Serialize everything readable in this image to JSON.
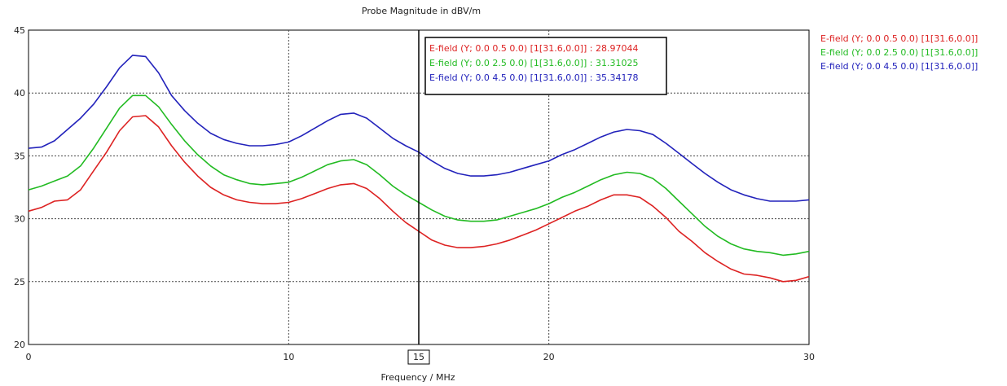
{
  "chart_data": {
    "type": "line",
    "title": "Probe Magnitude in dBV/m",
    "xlabel": "Frequency / MHz",
    "ylabel": "",
    "xlim": [
      0,
      30
    ],
    "ylim": [
      20,
      45
    ],
    "xticks": [
      "0",
      "10",
      "15",
      "20",
      "30"
    ],
    "yticks": [
      "20",
      "25",
      "30",
      "35",
      "40",
      "45"
    ],
    "grid": true,
    "legend_position": "right",
    "cursor": {
      "x": 15,
      "label": "15"
    },
    "series": [
      {
        "name": "E-field (Y; 0.0 0.5 0.0) [1[31.6,0.0]]",
        "color": "#dd2222",
        "cursor_value": "28.97044",
        "x": [
          0,
          0.5,
          1,
          1.5,
          2,
          2.5,
          3,
          3.5,
          4,
          4.5,
          5,
          5.5,
          6,
          6.5,
          7,
          7.5,
          8,
          8.5,
          9,
          9.5,
          10,
          10.5,
          11,
          11.5,
          12,
          12.5,
          13,
          13.5,
          14,
          14.5,
          15,
          15.5,
          16,
          16.5,
          17,
          17.5,
          18,
          18.5,
          19,
          19.5,
          20,
          20.5,
          21,
          21.5,
          22,
          22.5,
          23,
          23.5,
          24,
          24.5,
          25,
          25.5,
          26,
          26.5,
          27,
          27.5,
          28,
          28.5,
          29,
          29.5,
          30
        ],
        "y": [
          30.6,
          30.9,
          31.4,
          31.5,
          32.3,
          33.8,
          35.3,
          37.0,
          38.1,
          38.2,
          37.3,
          35.8,
          34.5,
          33.4,
          32.5,
          31.9,
          31.5,
          31.3,
          31.2,
          31.2,
          31.3,
          31.6,
          32.0,
          32.4,
          32.7,
          32.8,
          32.4,
          31.6,
          30.6,
          29.7,
          29.0,
          28.3,
          27.9,
          27.7,
          27.7,
          27.8,
          28.0,
          28.3,
          28.7,
          29.1,
          29.6,
          30.1,
          30.6,
          31.0,
          31.5,
          31.9,
          31.9,
          31.7,
          31.0,
          30.1,
          29.0,
          28.2,
          27.3,
          26.6,
          26.0,
          25.6,
          25.5,
          25.3,
          25.0,
          25.1,
          25.4
        ]
      },
      {
        "name": "E-field (Y; 0.0 2.5 0.0) [1[31.6,0.0]]",
        "color": "#22bb22",
        "cursor_value": "31.31025",
        "x": [
          0,
          0.5,
          1,
          1.5,
          2,
          2.5,
          3,
          3.5,
          4,
          4.5,
          5,
          5.5,
          6,
          6.5,
          7,
          7.5,
          8,
          8.5,
          9,
          9.5,
          10,
          10.5,
          11,
          11.5,
          12,
          12.5,
          13,
          13.5,
          14,
          14.5,
          15,
          15.5,
          16,
          16.5,
          17,
          17.5,
          18,
          18.5,
          19,
          19.5,
          20,
          20.5,
          21,
          21.5,
          22,
          22.5,
          23,
          23.5,
          24,
          24.5,
          25,
          25.5,
          26,
          26.5,
          27,
          27.5,
          28,
          28.5,
          29,
          29.5,
          30
        ],
        "y": [
          32.3,
          32.6,
          33.0,
          33.4,
          34.2,
          35.6,
          37.2,
          38.8,
          39.8,
          39.8,
          38.9,
          37.5,
          36.2,
          35.1,
          34.2,
          33.5,
          33.1,
          32.8,
          32.7,
          32.8,
          32.9,
          33.3,
          33.8,
          34.3,
          34.6,
          34.7,
          34.3,
          33.5,
          32.6,
          31.9,
          31.3,
          30.7,
          30.2,
          29.9,
          29.8,
          29.8,
          29.9,
          30.2,
          30.5,
          30.8,
          31.2,
          31.7,
          32.1,
          32.6,
          33.1,
          33.5,
          33.7,
          33.6,
          33.2,
          32.4,
          31.4,
          30.4,
          29.4,
          28.6,
          28.0,
          27.6,
          27.4,
          27.3,
          27.1,
          27.2,
          27.4
        ]
      },
      {
        "name": "E-field (Y; 0.0 4.5 0.0) [1[31.6,0.0]]",
        "color": "#2222bb",
        "cursor_value": "35.34178",
        "x": [
          0,
          0.5,
          1,
          1.5,
          2,
          2.5,
          3,
          3.5,
          4,
          4.5,
          5,
          5.5,
          6,
          6.5,
          7,
          7.5,
          8,
          8.5,
          9,
          9.5,
          10,
          10.5,
          11,
          11.5,
          12,
          12.5,
          13,
          13.5,
          14,
          14.5,
          15,
          15.5,
          16,
          16.5,
          17,
          17.5,
          18,
          18.5,
          19,
          19.5,
          20,
          20.5,
          21,
          21.5,
          22,
          22.5,
          23,
          23.5,
          24,
          24.5,
          25,
          25.5,
          26,
          26.5,
          27,
          27.5,
          28,
          28.5,
          29,
          29.5,
          30
        ],
        "y": [
          35.6,
          35.7,
          36.2,
          37.1,
          38.0,
          39.1,
          40.5,
          42.0,
          43.0,
          42.9,
          41.6,
          39.8,
          38.6,
          37.6,
          36.8,
          36.3,
          36.0,
          35.8,
          35.8,
          35.9,
          36.1,
          36.6,
          37.2,
          37.8,
          38.3,
          38.4,
          38.0,
          37.2,
          36.4,
          35.8,
          35.3,
          34.6,
          34.0,
          33.6,
          33.4,
          33.4,
          33.5,
          33.7,
          34.0,
          34.3,
          34.6,
          35.1,
          35.5,
          36.0,
          36.5,
          36.9,
          37.1,
          37.0,
          36.7,
          36.0,
          35.2,
          34.4,
          33.6,
          32.9,
          32.3,
          31.9,
          31.6,
          31.4,
          31.4,
          31.4,
          31.5
        ]
      }
    ]
  }
}
